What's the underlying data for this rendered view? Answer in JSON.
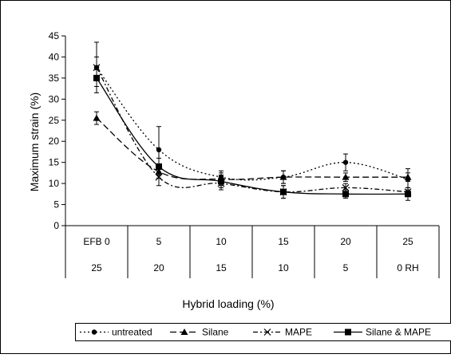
{
  "chart_data": {
    "type": "line",
    "ylabel": "Maximum strain (%)",
    "xlabel": "Hybrid loading (%)",
    "ylim": [
      0,
      45
    ],
    "yticks": [
      "0",
      "5",
      "10",
      "15",
      "20",
      "25",
      "30",
      "35",
      "40",
      "45"
    ],
    "category_rows": [
      [
        "EFB 0",
        "5",
        "10",
        "15",
        "20",
        "25"
      ],
      [
        "25",
        "20",
        "15",
        "10",
        "5",
        "0 RH"
      ]
    ],
    "grid": false,
    "legend_position": "bottom",
    "series": [
      {
        "name": "untreated",
        "style": "dotted",
        "marker": "circle",
        "color": "#000000",
        "values": [
          37.5,
          18.0,
          11.5,
          11.5,
          15.0,
          11.0
        ],
        "errors": [
          6.0,
          5.5,
          1.5,
          1.5,
          2.0,
          2.5
        ]
      },
      {
        "name": "Silane",
        "style": "dashed",
        "marker": "triangle",
        "color": "#000000",
        "values": [
          25.5,
          12.8,
          11.0,
          11.5,
          11.5,
          11.5
        ],
        "errors": [
          1.5,
          1.5,
          1.5,
          1.5,
          1.0,
          1.0
        ]
      },
      {
        "name": "MAPE",
        "style": "dash-dot",
        "marker": "x",
        "color": "#000000",
        "values": [
          37.5,
          11.5,
          10.0,
          8.0,
          9.0,
          8.0
        ],
        "errors": [
          2.5,
          2.0,
          1.5,
          1.5,
          1.0,
          1.0
        ]
      },
      {
        "name": "Silane & MAPE",
        "style": "solid",
        "marker": "square",
        "color": "#000000",
        "values": [
          35.0,
          14.0,
          10.5,
          8.0,
          7.5,
          7.5
        ],
        "errors": [
          2.0,
          2.0,
          1.5,
          1.5,
          1.0,
          1.5
        ]
      }
    ]
  }
}
